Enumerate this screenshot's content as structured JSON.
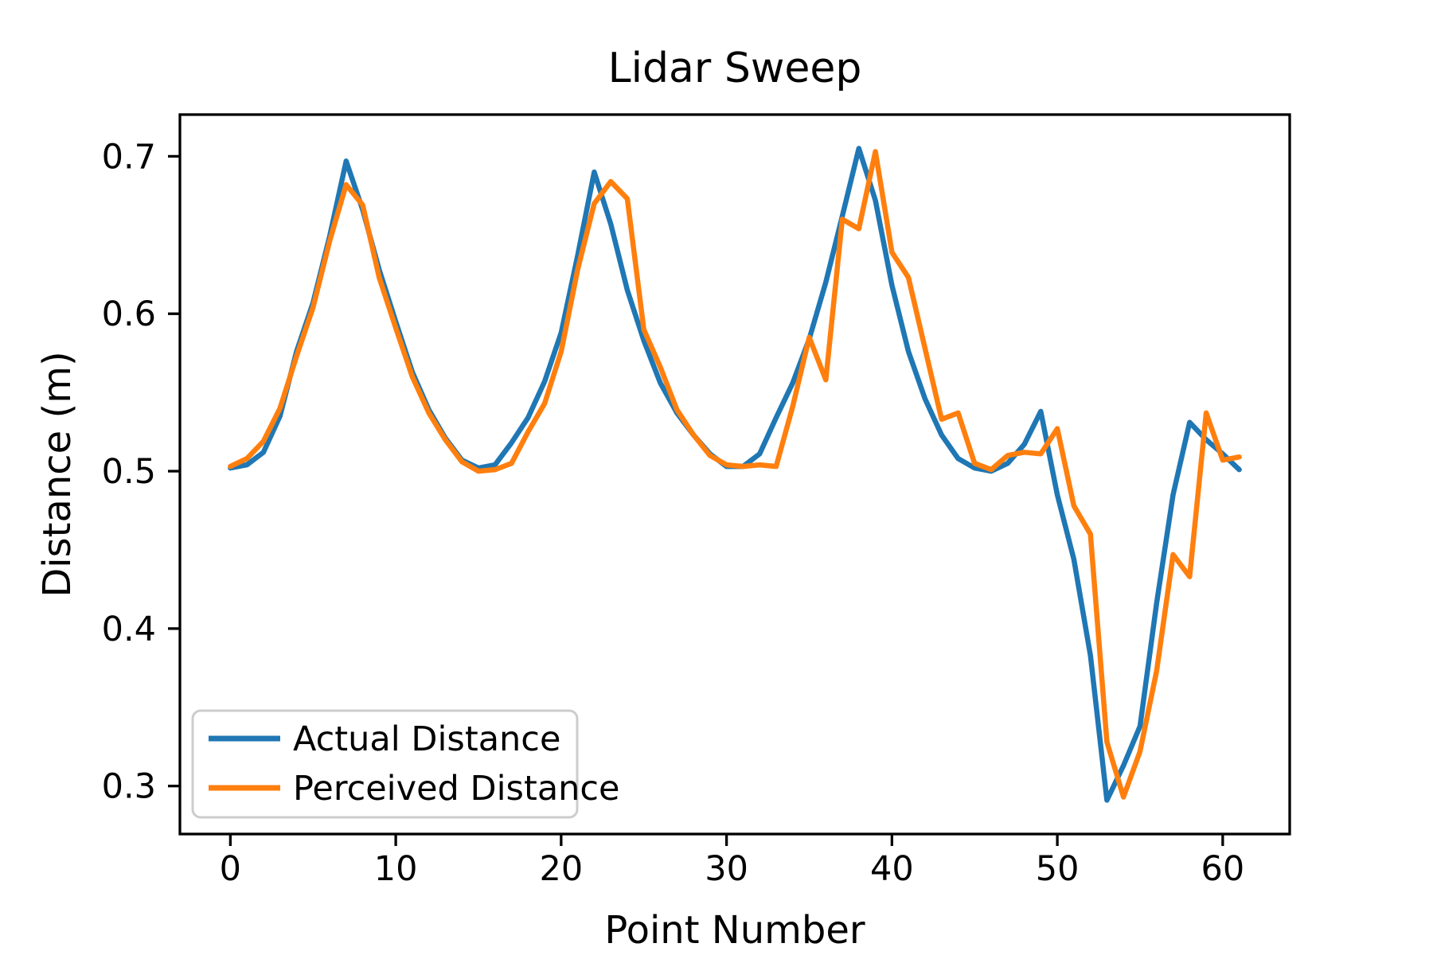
{
  "title": "Lidar Sweep",
  "axes": {
    "xlabel": "Point Number",
    "ylabel": "Distance (m)",
    "xticks": [
      0,
      10,
      20,
      30,
      40,
      50,
      60
    ],
    "yticks": [
      "0.3",
      "0.4",
      "0.5",
      "0.6",
      "0.7"
    ],
    "xlim": [
      -3.05,
      64.05
    ],
    "ylim": [
      0.2695,
      0.7265
    ]
  },
  "legend": {
    "position": "lower left",
    "items": [
      {
        "label": "Actual Distance",
        "color": "#1f77b4"
      },
      {
        "label": "Perceived Distance",
        "color": "#ff7f0e"
      }
    ]
  },
  "chart_data": {
    "type": "line",
    "title": "Lidar Sweep",
    "xlabel": "Point Number",
    "ylabel": "Distance (m)",
    "grid": false,
    "legend_position": "lower left",
    "xlim": [
      -3.05,
      64.05
    ],
    "ylim": [
      0.2695,
      0.7265
    ],
    "x": [
      0,
      1,
      2,
      3,
      4,
      5,
      6,
      7,
      8,
      9,
      10,
      11,
      12,
      13,
      14,
      15,
      16,
      17,
      18,
      19,
      20,
      21,
      22,
      23,
      24,
      25,
      26,
      27,
      28,
      29,
      30,
      31,
      32,
      33,
      34,
      35,
      36,
      37,
      38,
      39,
      40,
      41,
      42,
      43,
      44,
      45,
      46,
      47,
      48,
      49,
      50,
      51,
      52,
      53,
      54,
      55,
      56,
      57,
      58,
      59,
      60,
      61
    ],
    "series": [
      {
        "name": "Actual Distance",
        "color": "#1f77b4",
        "values": [
          0.502,
          0.504,
          0.512,
          0.535,
          0.576,
          0.607,
          0.649,
          0.697,
          0.666,
          0.628,
          0.595,
          0.563,
          0.539,
          0.521,
          0.507,
          0.502,
          0.504,
          0.518,
          0.534,
          0.557,
          0.588,
          0.637,
          0.69,
          0.657,
          0.615,
          0.583,
          0.556,
          0.537,
          0.523,
          0.511,
          0.503,
          0.503,
          0.511,
          0.534,
          0.556,
          0.584,
          0.62,
          0.662,
          0.705,
          0.672,
          0.618,
          0.576,
          0.546,
          0.523,
          0.508,
          0.502,
          0.5,
          0.505,
          0.517,
          0.538,
          0.485,
          0.444,
          0.383,
          0.291,
          0.313,
          0.338,
          0.416,
          0.485,
          0.531,
          0.52,
          0.511,
          0.501
        ]
      },
      {
        "name": "Perceived Distance",
        "color": "#ff7f0e",
        "values": [
          0.503,
          0.508,
          0.519,
          0.54,
          0.573,
          0.604,
          0.646,
          0.682,
          0.669,
          0.623,
          0.591,
          0.56,
          0.537,
          0.52,
          0.506,
          0.5,
          0.501,
          0.505,
          0.525,
          0.543,
          0.576,
          0.628,
          0.67,
          0.684,
          0.673,
          0.59,
          0.566,
          0.539,
          0.523,
          0.51,
          0.504,
          0.503,
          0.504,
          0.503,
          0.541,
          0.585,
          0.558,
          0.66,
          0.654,
          0.703,
          0.639,
          0.623,
          0.578,
          0.533,
          0.537,
          0.505,
          0.501,
          0.51,
          0.512,
          0.511,
          0.527,
          0.478,
          0.46,
          0.328,
          0.293,
          0.322,
          0.373,
          0.447,
          0.433,
          0.537,
          0.507,
          0.509
        ]
      }
    ]
  }
}
